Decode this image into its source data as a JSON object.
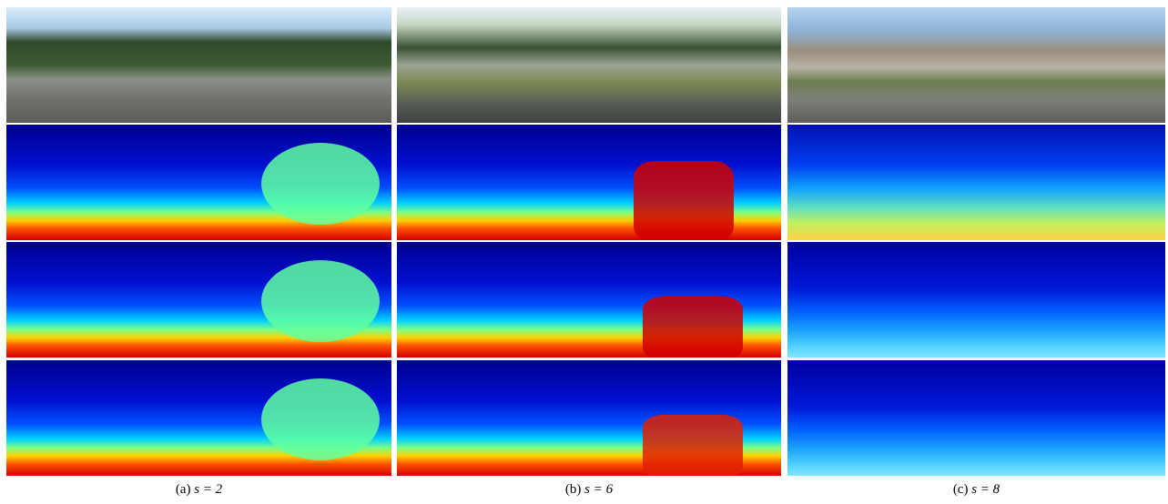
{
  "captions": [
    {
      "prefix": "(a)",
      "math": "s = 2"
    },
    {
      "prefix": "(b)",
      "math": "s = 6"
    },
    {
      "prefix": "(c)",
      "math": "s = 8"
    }
  ]
}
